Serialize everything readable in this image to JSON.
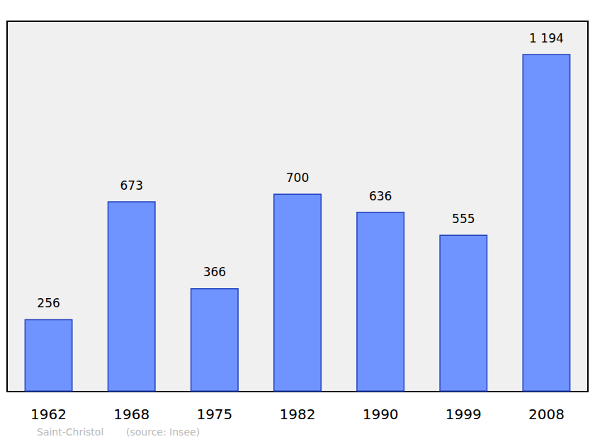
{
  "chart_data": {
    "type": "bar",
    "categories": [
      "1962",
      "1968",
      "1975",
      "1982",
      "1990",
      "1999",
      "2008"
    ],
    "values": [
      256,
      673,
      366,
      700,
      636,
      555,
      1194
    ],
    "value_labels": [
      "256",
      "673",
      "366",
      "700",
      "636",
      "555",
      "1 194"
    ],
    "color": "#7094ff",
    "ylim": [
      0,
      1310
    ],
    "grid": false,
    "data_labels": true,
    "tick_labels": "x",
    "annotations": [
      "Saint-Christol",
      "(source: Insee)"
    ]
  }
}
